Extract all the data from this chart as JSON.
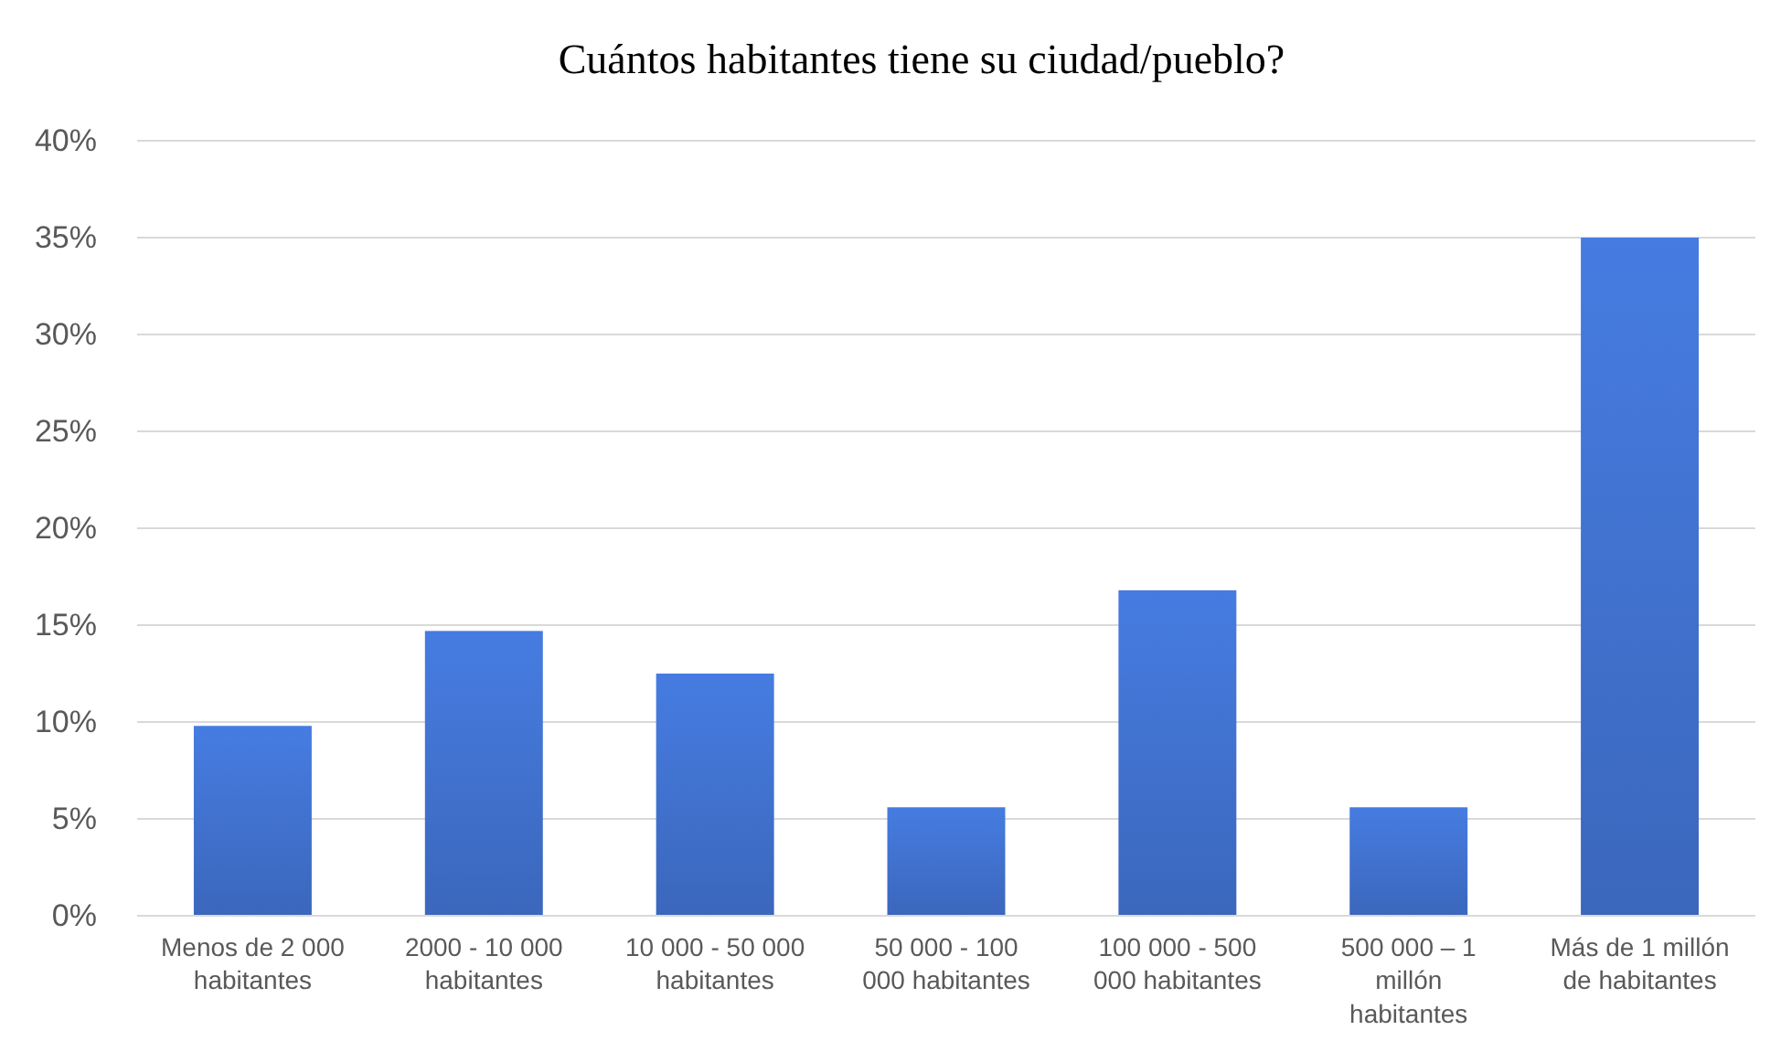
{
  "chart_data": {
    "type": "bar",
    "title": "Cuántos habitantes tiene su ciudad/pueblo?",
    "categories": [
      "Menos de 2 000 habitantes",
      "2000 - 10 000 habitantes",
      "10 000 - 50 000 habitantes",
      "50 000 - 100 000 habitantes",
      "100 000 - 500 000 habitantes",
      "500 000 – 1 millón habitantes",
      "Más de 1 millón de habitantes"
    ],
    "values": [
      9.8,
      14.7,
      12.5,
      5.6,
      16.8,
      5.6,
      35.0
    ],
    "color": "#3f6fca",
    "ylim": [
      0,
      40
    ],
    "yticks": [
      {
        "value": 0,
        "label": "0%"
      },
      {
        "value": 5,
        "label": "5%"
      },
      {
        "value": 10,
        "label": "10%"
      },
      {
        "value": 15,
        "label": "15%"
      },
      {
        "value": 20,
        "label": "20%"
      },
      {
        "value": 25,
        "label": "25%"
      },
      {
        "value": 30,
        "label": "30%"
      },
      {
        "value": 35,
        "label": "35%"
      },
      {
        "value": 40,
        "label": "40%"
      }
    ],
    "grid": "y"
  }
}
